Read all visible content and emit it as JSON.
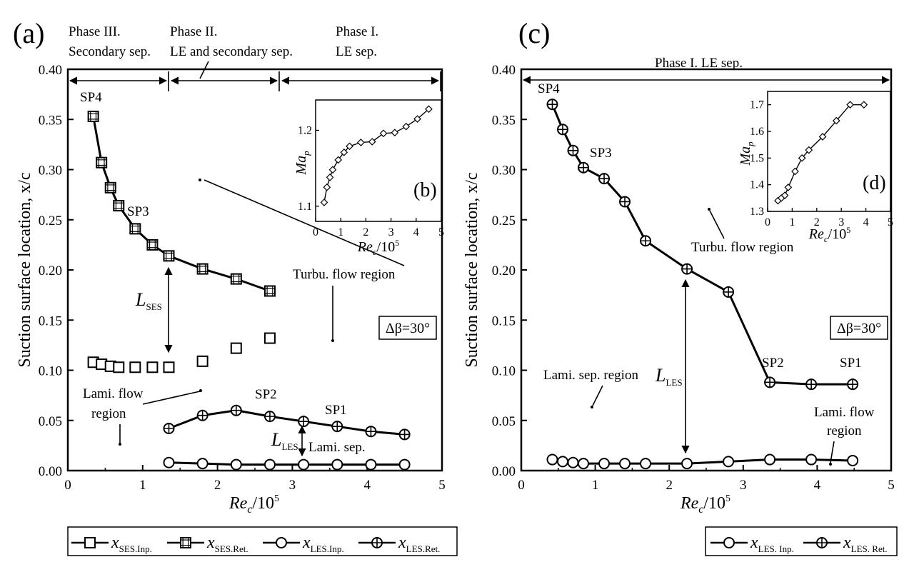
{
  "panels": {
    "a": {
      "label": "(a)"
    },
    "b": {
      "label": "(b)"
    },
    "c": {
      "label": "(c)"
    },
    "d": {
      "label": "(d)"
    }
  },
  "phases_a": [
    {
      "title": "Phase III.",
      "sub": "Secondary sep."
    },
    {
      "title": "Phase II.",
      "sub": "LE and secondary sep."
    },
    {
      "title": "Phase I.",
      "sub": "LE sep."
    }
  ],
  "phase_c": "Phase I. LE sep.",
  "annotations": {
    "turbu": "Turbu. flow region",
    "lami_flow_1": "Lami. flow",
    "lami_flow_2": "region",
    "lami_sep": "Lami. sep.",
    "lami_sep_region": "Lami. sep. region",
    "delta_beta": "Δβ=30°",
    "L_main": "L",
    "L_SES_sub": "SES",
    "L_LES_sub": "LES",
    "sp1": "SP1",
    "sp2": "SP2",
    "sp3": "SP3",
    "sp4": "SP4"
  },
  "axes": {
    "y_label": "Suction surface  location, x/c",
    "x_label_main": "Re",
    "x_label_sub": "c",
    "x_label_tail": "/10",
    "x_label_sup": "5",
    "inset_y_main": "Ma",
    "inset_y_sub": "p"
  },
  "legends": {
    "left": [
      {
        "sym": "x",
        "sub": "SES.Inp.",
        "marker": "square"
      },
      {
        "sym": "x",
        "sub": "SES.Ret.",
        "marker": "crosssquare"
      },
      {
        "sym": "x",
        "sub": "LES.Inp.",
        "marker": "circle"
      },
      {
        "sym": "x",
        "sub": "LES.Ret.",
        "marker": "pluscircle"
      }
    ],
    "right": [
      {
        "sym": "x",
        "sub": "LES. Inp.",
        "marker": "circle"
      },
      {
        "sym": "x",
        "sub": "LES. Ret.",
        "marker": "pluscircle"
      }
    ]
  },
  "chart_data": [
    {
      "panel": "a",
      "type": "line",
      "xlabel": "Re_c/10^5",
      "ylabel": "Suction surface location, x/c",
      "xlim": [
        0,
        5
      ],
      "ylim": [
        0,
        0.4
      ],
      "xticks": [
        "0",
        "1",
        "2",
        "3",
        "4",
        "5"
      ],
      "yticks": [
        "0.00",
        "0.05",
        "0.10",
        "0.15",
        "0.20",
        "0.25",
        "0.30",
        "0.35",
        "0.40"
      ],
      "series": [
        {
          "name": "x_SES.Inp.",
          "marker": "square",
          "line": false,
          "x": [
            0.34,
            0.45,
            0.57,
            0.68,
            0.9,
            1.13,
            1.35,
            1.8,
            2.25,
            2.7
          ],
          "y": [
            0.108,
            0.106,
            0.104,
            0.103,
            0.103,
            0.103,
            0.103,
            0.109,
            0.122,
            0.132
          ]
        },
        {
          "name": "x_SES.Ret.",
          "marker": "crosssquare",
          "line": true,
          "x": [
            0.34,
            0.45,
            0.57,
            0.68,
            0.9,
            1.13,
            1.35,
            1.8,
            2.25,
            2.7
          ],
          "y": [
            0.353,
            0.307,
            0.282,
            0.264,
            0.241,
            0.225,
            0.214,
            0.201,
            0.191,
            0.179
          ]
        },
        {
          "name": "x_LES.Inp.",
          "marker": "circle",
          "line": true,
          "x": [
            1.35,
            1.8,
            2.25,
            2.7,
            3.15,
            3.6,
            4.05,
            4.5
          ],
          "y": [
            0.008,
            0.007,
            0.006,
            0.006,
            0.006,
            0.006,
            0.006,
            0.006
          ]
        },
        {
          "name": "x_LES.Ret.",
          "marker": "pluscircle",
          "line": true,
          "x": [
            1.35,
            1.8,
            2.25,
            2.7,
            3.15,
            3.6,
            4.05,
            4.5
          ],
          "y": [
            0.042,
            0.055,
            0.06,
            0.054,
            0.049,
            0.044,
            0.039,
            0.036
          ]
        }
      ]
    },
    {
      "panel": "b",
      "type": "line",
      "xlabel": "Re_c/10^5",
      "ylabel": "Ma_p",
      "xlim": [
        0,
        5
      ],
      "ylim": [
        1.08,
        1.24
      ],
      "xticks": [
        "0",
        "1",
        "2",
        "3",
        "4",
        "5"
      ],
      "yticks": [
        "1.1",
        "1.2"
      ],
      "series": [
        {
          "name": "Ma_p",
          "marker": "diamond",
          "line": true,
          "x": [
            0.34,
            0.45,
            0.57,
            0.68,
            0.9,
            1.13,
            1.35,
            1.8,
            2.25,
            2.7,
            3.15,
            3.6,
            4.05,
            4.5
          ],
          "y": [
            1.105,
            1.125,
            1.138,
            1.148,
            1.161,
            1.171,
            1.179,
            1.184,
            1.185,
            1.196,
            1.197,
            1.205,
            1.215,
            1.228
          ]
        }
      ]
    },
    {
      "panel": "c",
      "type": "line",
      "xlabel": "Re_c/10^5",
      "ylabel": "Suction surface location, x/c",
      "xlim": [
        0,
        5
      ],
      "ylim": [
        0,
        0.4
      ],
      "xticks": [
        "0",
        "1",
        "2",
        "3",
        "4",
        "5"
      ],
      "yticks": [
        "0.00",
        "0.05",
        "0.10",
        "0.15",
        "0.20",
        "0.25",
        "0.30",
        "0.35",
        "0.40"
      ],
      "series": [
        {
          "name": "x_LES.Inp.",
          "marker": "circle",
          "line": true,
          "x": [
            0.42,
            0.56,
            0.7,
            0.84,
            1.12,
            1.4,
            1.68,
            2.24,
            2.8,
            3.36,
            3.92,
            4.48
          ],
          "y": [
            0.011,
            0.009,
            0.008,
            0.007,
            0.007,
            0.007,
            0.007,
            0.007,
            0.009,
            0.011,
            0.011,
            0.01
          ]
        },
        {
          "name": "x_LES.Ret.",
          "marker": "pluscircle",
          "line": true,
          "x": [
            0.42,
            0.56,
            0.7,
            0.84,
            1.12,
            1.4,
            1.68,
            2.24,
            2.8,
            3.36,
            3.92,
            4.48
          ],
          "y": [
            0.365,
            0.34,
            0.319,
            0.302,
            0.291,
            0.268,
            0.229,
            0.201,
            0.178,
            0.088,
            0.086,
            0.086
          ]
        }
      ]
    },
    {
      "panel": "d",
      "type": "line",
      "xlabel": "Re_c/10^5",
      "ylabel": "Ma_p",
      "xlim": [
        0,
        5
      ],
      "ylim": [
        1.3,
        1.75
      ],
      "xticks": [
        "0",
        "1",
        "2",
        "3",
        "4",
        "5"
      ],
      "yticks": [
        "1.3",
        "1.4",
        "1.5",
        "1.6",
        "1.7"
      ],
      "series": [
        {
          "name": "Ma_p",
          "marker": "diamond",
          "line": true,
          "x": [
            0.42,
            0.56,
            0.7,
            0.84,
            1.12,
            1.4,
            1.68,
            2.24,
            2.8,
            3.36,
            3.92
          ],
          "y": [
            1.34,
            1.35,
            1.36,
            1.39,
            1.45,
            1.5,
            1.53,
            1.58,
            1.64,
            1.7,
            1.7
          ]
        }
      ]
    }
  ]
}
